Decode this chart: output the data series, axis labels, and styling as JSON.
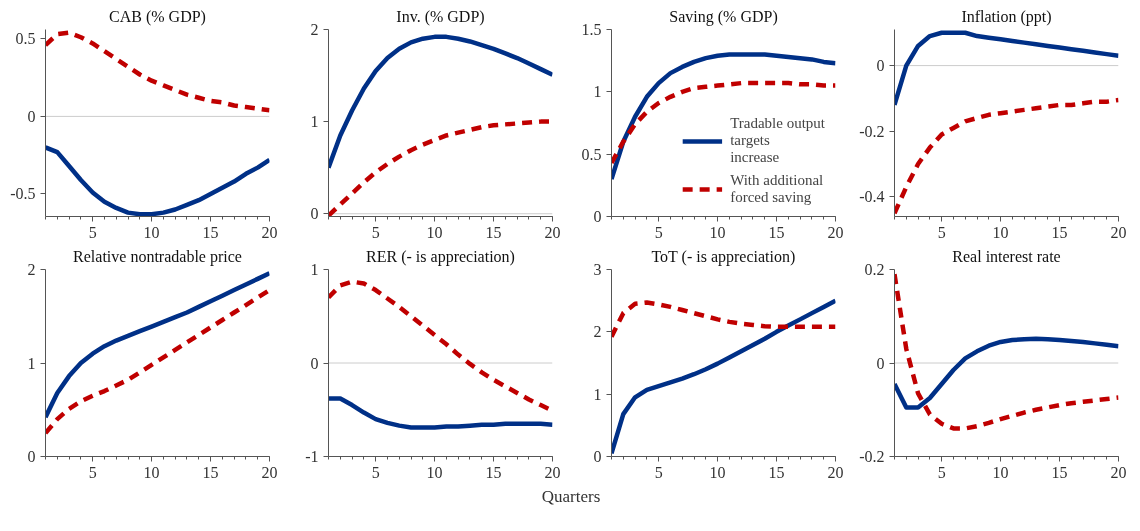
{
  "chart_data": [
    {
      "type": "line",
      "title": "CAB (% GDP)",
      "x": [
        1,
        2,
        3,
        4,
        5,
        6,
        7,
        8,
        9,
        10,
        11,
        12,
        13,
        14,
        15,
        16,
        17,
        18,
        19,
        20
      ],
      "xlim": [
        1,
        20
      ],
      "xticks": [
        5,
        10,
        15,
        20
      ],
      "ylim": [
        -0.645,
        0.56
      ],
      "yticks": [
        -0.5,
        0,
        0.5
      ],
      "grid": false,
      "ref_lines": [
        {
          "axis": "y",
          "value": 0,
          "color": "#cccccc"
        }
      ],
      "series": [
        {
          "color": "#003087",
          "line_style": "solid",
          "values": [
            -0.2,
            -0.23,
            -0.32,
            -0.41,
            -0.49,
            -0.55,
            -0.59,
            -0.62,
            -0.63,
            -0.63,
            -0.62,
            -0.6,
            -0.57,
            -0.54,
            -0.5,
            -0.46,
            -0.42,
            -0.37,
            -0.33,
            -0.28
          ]
        },
        {
          "color": "#c00000",
          "line_style": "dashed",
          "values": [
            0.46,
            0.53,
            0.54,
            0.51,
            0.47,
            0.42,
            0.37,
            0.32,
            0.27,
            0.23,
            0.2,
            0.17,
            0.14,
            0.12,
            0.1,
            0.09,
            0.07,
            0.06,
            0.05,
            0.04
          ]
        }
      ]
    },
    {
      "type": "line",
      "title": "Inv. (% GDP)",
      "x": [
        1,
        2,
        3,
        4,
        5,
        6,
        7,
        8,
        9,
        10,
        11,
        12,
        13,
        14,
        15,
        16,
        17,
        18,
        19,
        20
      ],
      "xlim": [
        1,
        20
      ],
      "xticks": [
        5,
        10,
        15,
        20
      ],
      "ylim": [
        -0.03,
        2
      ],
      "yticks": [
        0,
        1,
        2
      ],
      "grid": false,
      "ref_lines": [
        {
          "axis": "y",
          "value": 0,
          "color": "#cccccc"
        }
      ],
      "series": [
        {
          "color": "#003087",
          "line_style": "solid",
          "values": [
            0.5,
            0.85,
            1.12,
            1.36,
            1.55,
            1.69,
            1.79,
            1.86,
            1.9,
            1.92,
            1.92,
            1.9,
            1.87,
            1.83,
            1.79,
            1.74,
            1.69,
            1.63,
            1.57,
            1.51
          ]
        },
        {
          "color": "#c00000",
          "line_style": "dashed",
          "values": [
            -0.02,
            0.1,
            0.22,
            0.34,
            0.45,
            0.54,
            0.62,
            0.69,
            0.75,
            0.8,
            0.85,
            0.88,
            0.91,
            0.94,
            0.96,
            0.97,
            0.98,
            0.99,
            1.0,
            1.0
          ]
        }
      ]
    },
    {
      "type": "line",
      "title": "Saving (% GDP)",
      "x": [
        1,
        2,
        3,
        4,
        5,
        6,
        7,
        8,
        9,
        10,
        11,
        12,
        13,
        14,
        15,
        16,
        17,
        18,
        19,
        20
      ],
      "xlim": [
        1,
        20
      ],
      "xticks": [
        5,
        10,
        15,
        20
      ],
      "ylim": [
        0,
        1.5
      ],
      "yticks": [
        0,
        0.5,
        1,
        1.5
      ],
      "grid": false,
      "legend": "bottom right",
      "series": [
        {
          "name": "Tradable output targets increase",
          "color": "#003087",
          "line_style": "solid",
          "values": [
            0.3,
            0.6,
            0.8,
            0.96,
            1.07,
            1.15,
            1.2,
            1.24,
            1.27,
            1.29,
            1.3,
            1.3,
            1.3,
            1.3,
            1.29,
            1.28,
            1.27,
            1.26,
            1.24,
            1.23
          ]
        },
        {
          "name": "With additional forced saving",
          "color": "#c00000",
          "line_style": "dashed",
          "values": [
            0.43,
            0.6,
            0.74,
            0.84,
            0.91,
            0.96,
            1.0,
            1.03,
            1.04,
            1.05,
            1.06,
            1.07,
            1.07,
            1.07,
            1.07,
            1.07,
            1.06,
            1.06,
            1.05,
            1.05
          ]
        }
      ]
    },
    {
      "type": "line",
      "title": "Inflation (ppt)",
      "x": [
        1,
        2,
        3,
        4,
        5,
        6,
        7,
        8,
        9,
        10,
        11,
        12,
        13,
        14,
        15,
        16,
        17,
        18,
        19,
        20
      ],
      "xlim": [
        1,
        20
      ],
      "xticks": [
        5,
        10,
        15,
        20
      ],
      "ylim": [
        -0.46,
        0.11
      ],
      "yticks": [
        -0.4,
        -0.2,
        0
      ],
      "grid": false,
      "ref_lines": [
        {
          "axis": "y",
          "value": 0,
          "color": "#cccccc"
        }
      ],
      "series": [
        {
          "color": "#003087",
          "line_style": "solid",
          "values": [
            -0.12,
            0,
            0.06,
            0.09,
            0.1,
            0.1,
            0.1,
            0.09,
            0.085,
            0.08,
            0.075,
            0.07,
            0.065,
            0.06,
            0.055,
            0.05,
            0.045,
            0.04,
            0.035,
            0.03
          ]
        },
        {
          "color": "#c00000",
          "line_style": "dashed",
          "values": [
            -0.45,
            -0.37,
            -0.3,
            -0.25,
            -0.21,
            -0.19,
            -0.17,
            -0.16,
            -0.15,
            -0.145,
            -0.14,
            -0.135,
            -0.13,
            -0.125,
            -0.12,
            -0.12,
            -0.115,
            -0.11,
            -0.11,
            -0.105
          ]
        }
      ]
    },
    {
      "type": "line",
      "title": "Relative nontradable price",
      "x": [
        1,
        2,
        3,
        4,
        5,
        6,
        7,
        8,
        9,
        10,
        11,
        12,
        13,
        14,
        15,
        16,
        17,
        18,
        19,
        20
      ],
      "xlim": [
        1,
        20
      ],
      "xticks": [
        5,
        10,
        15,
        20
      ],
      "ylim": [
        0,
        2
      ],
      "yticks": [
        0,
        1,
        2
      ],
      "grid": false,
      "series": [
        {
          "color": "#003087",
          "line_style": "solid",
          "values": [
            0.42,
            0.68,
            0.86,
            1.0,
            1.1,
            1.18,
            1.24,
            1.29,
            1.34,
            1.39,
            1.44,
            1.49,
            1.54,
            1.6,
            1.66,
            1.72,
            1.78,
            1.84,
            1.9,
            1.96
          ]
        },
        {
          "color": "#c00000",
          "line_style": "dashed",
          "values": [
            0.25,
            0.4,
            0.51,
            0.59,
            0.65,
            0.7,
            0.76,
            0.82,
            0.9,
            0.98,
            1.06,
            1.14,
            1.22,
            1.3,
            1.38,
            1.46,
            1.54,
            1.62,
            1.7,
            1.78
          ]
        }
      ]
    },
    {
      "type": "line",
      "title": "RER (- is appreciation)",
      "x": [
        1,
        2,
        3,
        4,
        5,
        6,
        7,
        8,
        9,
        10,
        11,
        12,
        13,
        14,
        15,
        16,
        17,
        18,
        19,
        20
      ],
      "xlim": [
        1,
        20
      ],
      "xticks": [
        5,
        10,
        15,
        20
      ],
      "ylim": [
        -1,
        1
      ],
      "yticks": [
        -1,
        0,
        1
      ],
      "grid": false,
      "ref_lines": [
        {
          "axis": "y",
          "value": 0,
          "color": "#cccccc"
        }
      ],
      "series": [
        {
          "color": "#003087",
          "line_style": "solid",
          "values": [
            -0.38,
            -0.38,
            -0.45,
            -0.53,
            -0.6,
            -0.64,
            -0.67,
            -0.69,
            -0.69,
            -0.69,
            -0.68,
            -0.68,
            -0.67,
            -0.66,
            -0.66,
            -0.65,
            -0.65,
            -0.65,
            -0.65,
            -0.66
          ]
        },
        {
          "color": "#c00000",
          "line_style": "dashed",
          "values": [
            0.7,
            0.83,
            0.87,
            0.85,
            0.78,
            0.69,
            0.6,
            0.5,
            0.4,
            0.3,
            0.2,
            0.09,
            -0.01,
            -0.1,
            -0.18,
            -0.25,
            -0.32,
            -0.39,
            -0.45,
            -0.51
          ]
        }
      ]
    },
    {
      "type": "line",
      "title": "ToT (- is appreciation)",
      "xlabel": "Quarters",
      "x": [
        1,
        2,
        3,
        4,
        5,
        6,
        7,
        8,
        9,
        10,
        11,
        12,
        13,
        14,
        15,
        16,
        17,
        18,
        19,
        20
      ],
      "xlim": [
        1,
        20
      ],
      "xticks": [
        5,
        10,
        15,
        20
      ],
      "ylim": [
        0,
        3
      ],
      "yticks": [
        0,
        1,
        2,
        3
      ],
      "grid": false,
      "series": [
        {
          "color": "#003087",
          "line_style": "solid",
          "values": [
            0.05,
            0.68,
            0.95,
            1.07,
            1.13,
            1.19,
            1.25,
            1.32,
            1.4,
            1.49,
            1.59,
            1.69,
            1.79,
            1.89,
            2.0,
            2.1,
            2.2,
            2.3,
            2.4,
            2.5
          ]
        },
        {
          "color": "#c00000",
          "line_style": "dashed",
          "values": [
            1.92,
            2.3,
            2.45,
            2.47,
            2.44,
            2.4,
            2.35,
            2.3,
            2.25,
            2.2,
            2.16,
            2.13,
            2.11,
            2.09,
            2.08,
            2.08,
            2.08,
            2.08,
            2.08,
            2.08
          ]
        }
      ]
    },
    {
      "type": "line",
      "title": "Real interest rate",
      "x": [
        1,
        2,
        3,
        4,
        5,
        6,
        7,
        8,
        9,
        10,
        11,
        12,
        13,
        14,
        15,
        16,
        17,
        18,
        19,
        20
      ],
      "xlim": [
        1,
        20
      ],
      "xticks": [
        5,
        10,
        15,
        20
      ],
      "ylim": [
        -0.2,
        0.2
      ],
      "yticks": [
        -0.2,
        0,
        0.2
      ],
      "grid": false,
      "ref_lines": [
        {
          "axis": "y",
          "value": 0,
          "color": "#cccccc"
        }
      ],
      "series": [
        {
          "color": "#003087",
          "line_style": "solid",
          "values": [
            -0.045,
            -0.095,
            -0.095,
            -0.075,
            -0.045,
            -0.015,
            0.01,
            0.025,
            0.037,
            0.045,
            0.049,
            0.051,
            0.052,
            0.051,
            0.049,
            0.047,
            0.045,
            0.042,
            0.039,
            0.036
          ]
        },
        {
          "color": "#c00000",
          "line_style": "dashed",
          "values": [
            0.19,
            0.03,
            -0.065,
            -0.11,
            -0.13,
            -0.14,
            -0.14,
            -0.135,
            -0.128,
            -0.12,
            -0.113,
            -0.106,
            -0.1,
            -0.095,
            -0.09,
            -0.086,
            -0.083,
            -0.08,
            -0.077,
            -0.074
          ]
        }
      ]
    }
  ]
}
